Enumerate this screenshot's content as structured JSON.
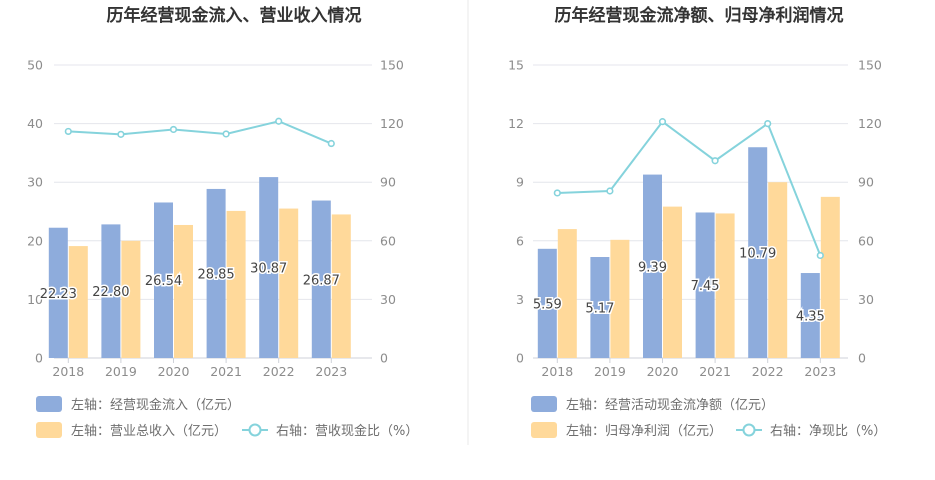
{
  "colors": {
    "primary_bar": "#8eacdc",
    "secondary_bar": "#ffd99a",
    "line": "#85d3dc",
    "axis_text": "#8c8c8c",
    "grid": "#e4e6ec",
    "title": "#333333",
    "label": "#444444",
    "legend_text": "#6e6e6e",
    "divider": "#e8e8e8"
  },
  "chart_data": [
    {
      "type": "bar",
      "title": "历年经营现金流入、营业收入情况",
      "categories": [
        "2018",
        "2019",
        "2020",
        "2021",
        "2022",
        "2023"
      ],
      "left_axis": {
        "min": 0,
        "max": 50,
        "ticks": [
          "0",
          "10",
          "20",
          "30",
          "40",
          "50"
        ]
      },
      "right_axis": {
        "min": 0,
        "max": 150,
        "ticks": [
          "0",
          "30",
          "60",
          "90",
          "120",
          "150"
        ]
      },
      "series": [
        {
          "name": "左轴：经营现金流入（亿元）",
          "kind": "bar",
          "axis": "left",
          "values": [
            22.23,
            22.8,
            26.54,
            28.85,
            30.87,
            26.87
          ],
          "labels": [
            "22.23",
            "22.80",
            "26.54",
            "28.85",
            "30.87",
            "26.87"
          ]
        },
        {
          "name": "左轴：营业总收入（亿元）",
          "kind": "bar",
          "axis": "left",
          "values": [
            19.1,
            20.0,
            22.7,
            25.1,
            25.5,
            24.5
          ]
        },
        {
          "name": "右轴：营收现金比（%）",
          "kind": "line",
          "axis": "right",
          "values": [
            116,
            114.5,
            117,
            114.7,
            121.2,
            109.8
          ]
        }
      ],
      "grid": true
    },
    {
      "type": "bar",
      "title": "历年经营现金流净额、归母净利润情况",
      "categories": [
        "2018",
        "2019",
        "2020",
        "2021",
        "2022",
        "2023"
      ],
      "left_axis": {
        "min": 0,
        "max": 15,
        "ticks": [
          "0",
          "3",
          "6",
          "9",
          "12",
          "15"
        ]
      },
      "right_axis": {
        "min": 0,
        "max": 150,
        "ticks": [
          "0",
          "30",
          "60",
          "90",
          "120",
          "150"
        ]
      },
      "series": [
        {
          "name": "左轴：经营活动现金流净额（亿元）",
          "kind": "bar",
          "axis": "left",
          "values": [
            5.59,
            5.17,
            9.39,
            7.45,
            10.79,
            4.35
          ],
          "labels": [
            "5.59",
            "5.17",
            "9.39",
            "7.45",
            "10.79",
            "4.35"
          ]
        },
        {
          "name": "左轴：归母净利润（亿元）",
          "kind": "bar",
          "axis": "left",
          "values": [
            6.6,
            6.05,
            7.75,
            7.4,
            9.0,
            8.25
          ]
        },
        {
          "name": "右轴：净现比（%）",
          "kind": "line",
          "axis": "right",
          "values": [
            84.5,
            85.5,
            121,
            101,
            120,
            52.5
          ]
        }
      ],
      "grid": true
    }
  ]
}
